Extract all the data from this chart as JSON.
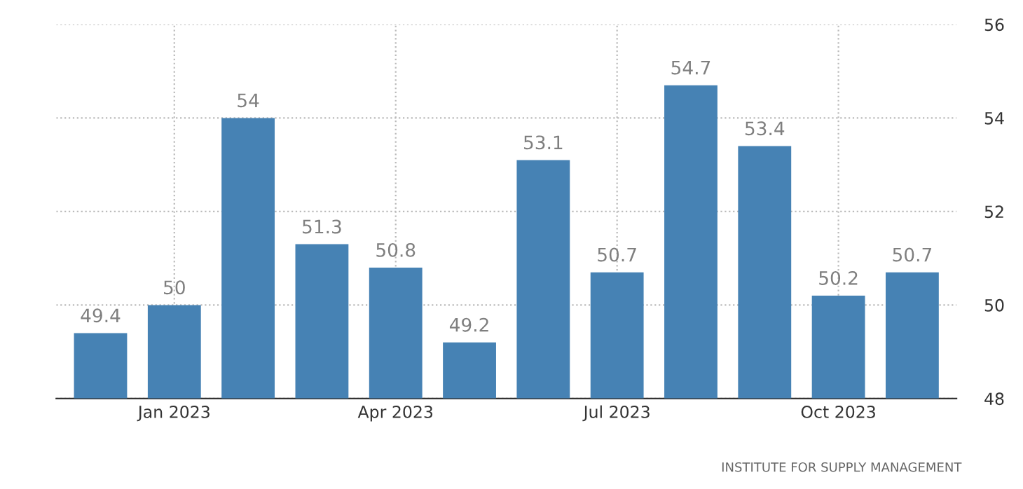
{
  "chart_data": {
    "type": "bar",
    "categories": [
      null,
      "Jan 2023",
      null,
      null,
      "Apr 2023",
      null,
      null,
      "Jul 2023",
      null,
      null,
      "Oct 2023",
      null
    ],
    "values": [
      49.4,
      50,
      54,
      51.3,
      50.8,
      49.2,
      53.1,
      50.7,
      54.7,
      53.4,
      50.2,
      50.7
    ],
    "value_labels": [
      "49.4",
      "50",
      "54",
      "51.3",
      "50.8",
      "49.2",
      "53.1",
      "50.7",
      "54.7",
      "53.4",
      "50.2",
      "50.7"
    ],
    "color": "#4682b4",
    "ylim": [
      48,
      56
    ],
    "yticks": [
      48,
      50,
      52,
      54,
      56
    ],
    "grid": true,
    "legend": false,
    "annotations": [
      "INSTITUTE FOR SUPPLY MANAGEMENT"
    ]
  }
}
